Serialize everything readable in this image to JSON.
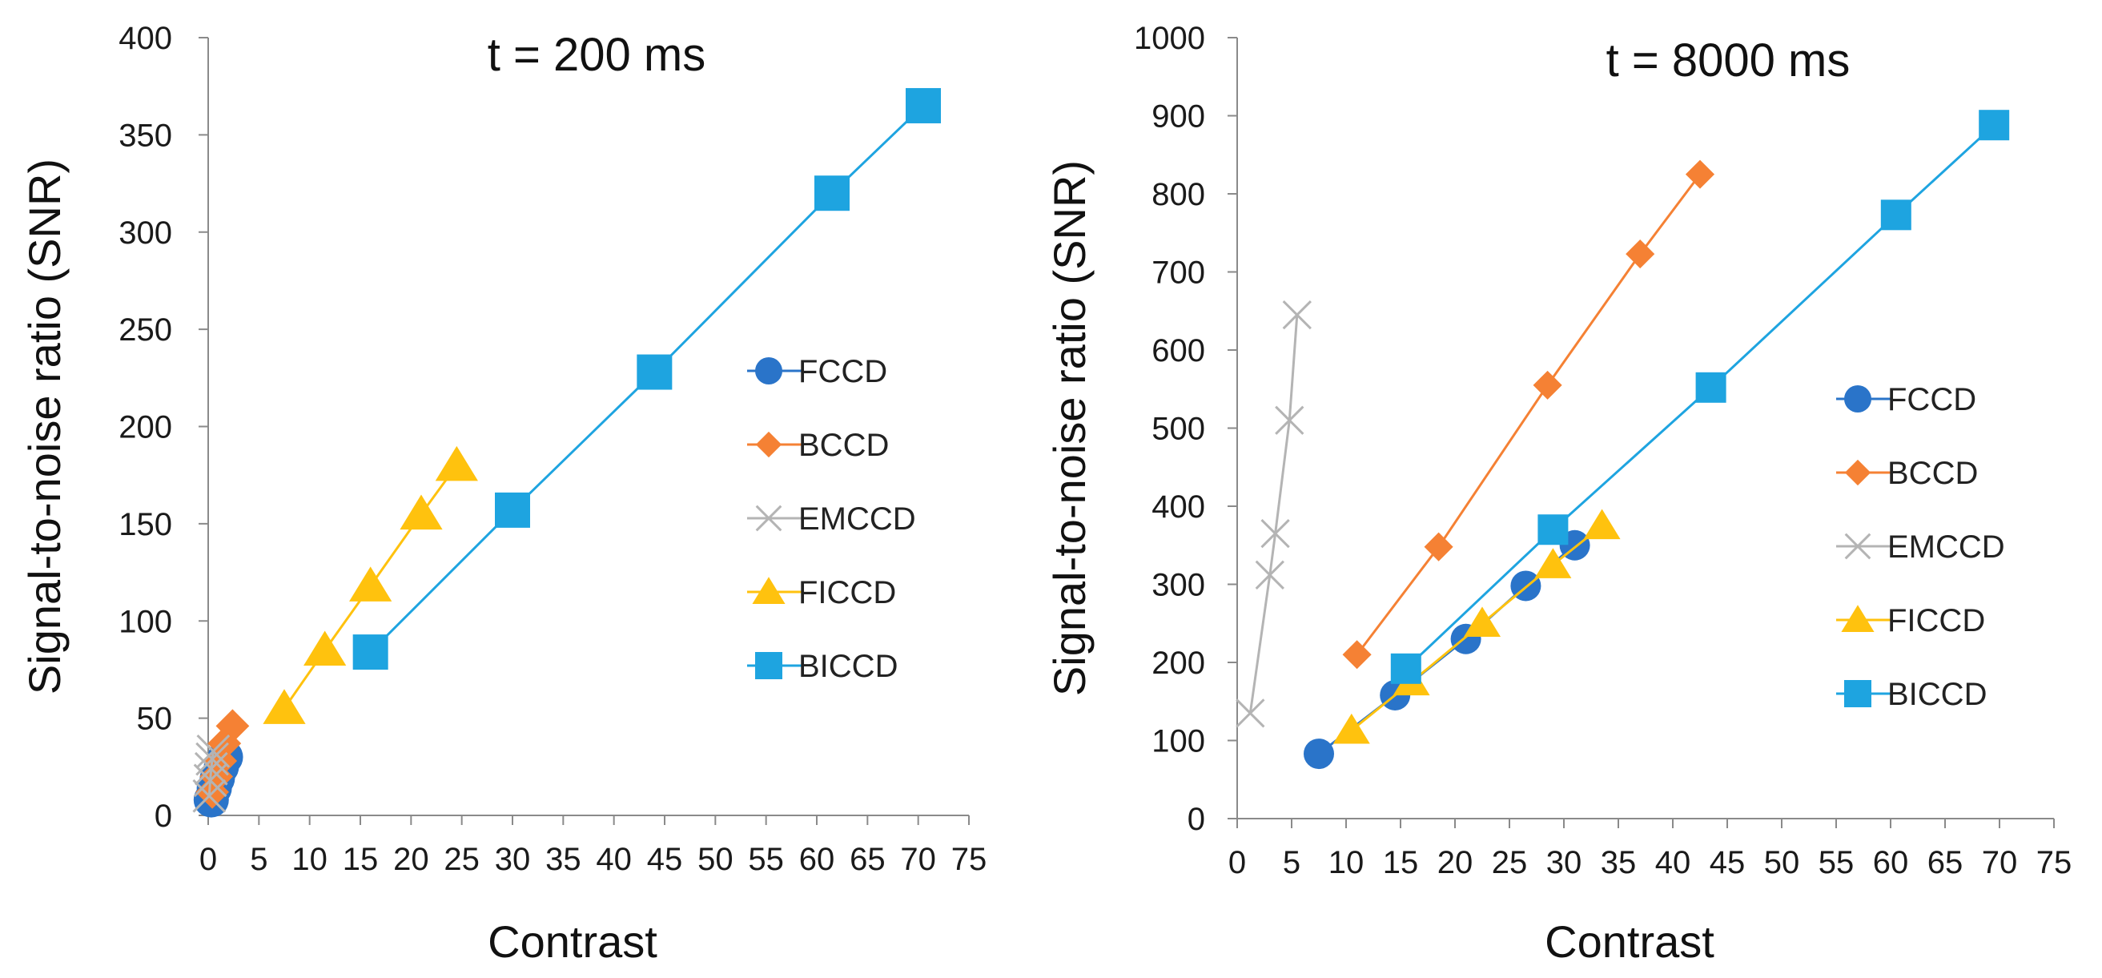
{
  "colors": {
    "FCCD": "#2a74c9",
    "BCCD": "#f58134",
    "EMCCD": "#b4b4b4",
    "FICCD": "#ffc20e",
    "BICCD": "#1ea4e0"
  },
  "chart_data": [
    {
      "type": "scatter",
      "title": "t = 200 ms",
      "xlabel": "Contrast",
      "ylabel": "Signal-to-noise ratio (SNR)",
      "xlim": [
        0,
        75
      ],
      "ylim": [
        0,
        400
      ],
      "xticks": [
        0,
        5,
        10,
        15,
        20,
        25,
        30,
        35,
        40,
        45,
        50,
        55,
        60,
        65,
        70,
        75
      ],
      "yticks": [
        0,
        50,
        100,
        150,
        200,
        250,
        300,
        350,
        400
      ],
      "legend_position": "right",
      "series": [
        {
          "name": "FCCD",
          "marker": "circle",
          "x": [
            0.3,
            0.6,
            0.9,
            1.3,
            1.7
          ],
          "y": [
            8,
            14,
            19,
            25,
            30
          ]
        },
        {
          "name": "BCCD",
          "marker": "diamond",
          "x": [
            0.4,
            0.8,
            1.2,
            1.6,
            2.4
          ],
          "y": [
            12,
            20,
            28,
            37,
            46
          ]
        },
        {
          "name": "EMCCD",
          "marker": "x",
          "x": [
            0.1,
            0.2,
            0.3,
            0.4,
            0.5
          ],
          "y": [
            10,
            18,
            24,
            29,
            33
          ]
        },
        {
          "name": "FICCD",
          "marker": "triangle",
          "x": [
            7.5,
            11.5,
            16,
            21,
            24.5
          ],
          "y": [
            55,
            85,
            118,
            155,
            180
          ]
        },
        {
          "name": "BICCD",
          "marker": "square",
          "x": [
            16,
            30,
            44,
            61.5,
            70.5
          ],
          "y": [
            84,
            157,
            228,
            320,
            365
          ]
        }
      ]
    },
    {
      "type": "scatter",
      "title": "t = 8000 ms",
      "xlabel": "Contrast",
      "ylabel": "Signal-to-noise ratio (SNR)",
      "xlim": [
        0,
        75
      ],
      "ylim": [
        0,
        1000
      ],
      "xticks": [
        0,
        5,
        10,
        15,
        20,
        25,
        30,
        35,
        40,
        45,
        50,
        55,
        60,
        65,
        70,
        75
      ],
      "yticks": [
        0,
        100,
        200,
        300,
        400,
        500,
        600,
        700,
        800,
        900,
        1000
      ],
      "legend_position": "right",
      "series": [
        {
          "name": "FCCD",
          "marker": "circle",
          "x": [
            7.5,
            14.5,
            21,
            26.5,
            31
          ],
          "y": [
            83,
            158,
            230,
            298,
            350
          ]
        },
        {
          "name": "BCCD",
          "marker": "diamond",
          "x": [
            11,
            18.5,
            28.5,
            37,
            42.5
          ],
          "y": [
            210,
            348,
            555,
            723,
            825
          ]
        },
        {
          "name": "EMCCD",
          "marker": "x",
          "x": [
            1.2,
            3,
            3.5,
            4.8,
            5.5
          ],
          "y": [
            135,
            312,
            365,
            510,
            645
          ]
        },
        {
          "name": "FICCD",
          "marker": "triangle",
          "x": [
            10.5,
            16,
            22.5,
            29,
            33.5
          ],
          "y": [
            113,
            175,
            250,
            325,
            375
          ]
        },
        {
          "name": "BICCD",
          "marker": "square",
          "x": [
            15.5,
            29,
            43.5,
            60.5,
            69.5
          ],
          "y": [
            192,
            370,
            552,
            773,
            888
          ]
        }
      ]
    }
  ]
}
